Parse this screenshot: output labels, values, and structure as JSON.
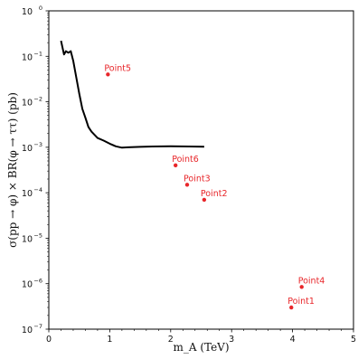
{
  "chart_data": {
    "type": "line",
    "xlabel": "m_A (TeV)",
    "ylabel": "σ(pp → φ) × BR(φ → ττ) (pb)",
    "xlim": [
      0,
      5
    ],
    "ylim_log10": [
      -7,
      0
    ],
    "y_scale": "log",
    "x_ticks": [
      "0",
      "1",
      "2",
      "3",
      "4",
      "5"
    ],
    "y_ticks": [
      {
        "base": "10",
        "exp": "0"
      },
      {
        "base": "10",
        "exp": "−1"
      },
      {
        "base": "10",
        "exp": "−2"
      },
      {
        "base": "10",
        "exp": "−3"
      },
      {
        "base": "10",
        "exp": "−4"
      },
      {
        "base": "10",
        "exp": "−5"
      },
      {
        "base": "10",
        "exp": "−6"
      },
      {
        "base": "10",
        "exp": "−7"
      }
    ],
    "series": [
      {
        "color": "#000000",
        "x": [
          0.2,
          0.25,
          0.28,
          0.32,
          0.36,
          0.4,
          0.45,
          0.5,
          0.55,
          0.6,
          0.65,
          0.7,
          0.8,
          0.9,
          1.0,
          1.1,
          1.2,
          1.3,
          1.5,
          1.7,
          2.0,
          2.3,
          2.55
        ],
        "y": [
          0.22,
          0.11,
          0.13,
          0.12,
          0.13,
          0.08,
          0.035,
          0.015,
          0.007,
          0.0045,
          0.0028,
          0.0022,
          0.0016,
          0.0014,
          0.0012,
          0.00105,
          0.00098,
          0.001,
          0.00102,
          0.00104,
          0.00105,
          0.00104,
          0.00103
        ]
      }
    ],
    "points": [
      {
        "label": "Point1",
        "x": 3.98,
        "y": 3e-07
      },
      {
        "label": "Point2",
        "x": 2.55,
        "y": 7e-05
      },
      {
        "label": "Point3",
        "x": 2.27,
        "y": 0.00015
      },
      {
        "label": "Point4",
        "x": 4.15,
        "y": 8.5e-07
      },
      {
        "label": "Point5",
        "x": 0.97,
        "y": 0.04
      },
      {
        "label": "Point6",
        "x": 2.08,
        "y": 0.0004
      }
    ],
    "point_color": "#e8262a"
  }
}
